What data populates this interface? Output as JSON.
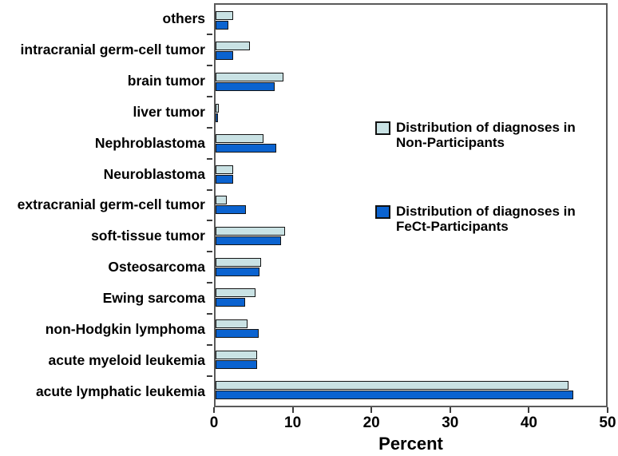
{
  "chart_data": {
    "type": "bar",
    "orientation": "horizontal",
    "title": "",
    "xlabel": "Percent",
    "ylabel": "",
    "xlim": [
      0,
      50
    ],
    "xticks": [
      0,
      10,
      20,
      30,
      40,
      50
    ],
    "grid": false,
    "legend_position": "inside-right",
    "bar_outline_color": "#141414",
    "axis_color": "#5a5a5a",
    "categories": [
      "others",
      "intracranial germ-cell tumor",
      "brain tumor",
      "liver tumor",
      "Nephroblastoma",
      "Neuroblastoma",
      "extracranial germ-cell tumor",
      "soft-tissue tumor",
      "Osteosarcoma",
      "Ewing sarcoma",
      "non-Hodgkin lymphoma",
      "acute myeloid leukemia",
      "acute lymphatic leukemia"
    ],
    "series": [
      {
        "name": "Distribution of diagnoses in Non-Participants",
        "color": "#c9e2e4",
        "values": [
          2.3,
          4.4,
          8.7,
          0.4,
          6.1,
          2.2,
          1.4,
          8.9,
          5.8,
          5.1,
          4.1,
          5.3,
          45.2
        ]
      },
      {
        "name": "Distribution of diagnoses in FeCt-Participants",
        "color": "#0b63d0",
        "values": [
          1.6,
          2.2,
          7.6,
          0.3,
          7.8,
          2.3,
          3.9,
          8.4,
          5.6,
          3.8,
          5.5,
          5.3,
          45.8
        ]
      }
    ]
  },
  "legend": {
    "entries": [
      {
        "line1": "Distribution of diagnoses in",
        "line2": "Non-Participants",
        "swatch": "#c9e2e4"
      },
      {
        "line1": "Distribution of diagnoses in",
        "line2": "FeCt-Participants",
        "swatch": "#0b63d0"
      }
    ]
  }
}
